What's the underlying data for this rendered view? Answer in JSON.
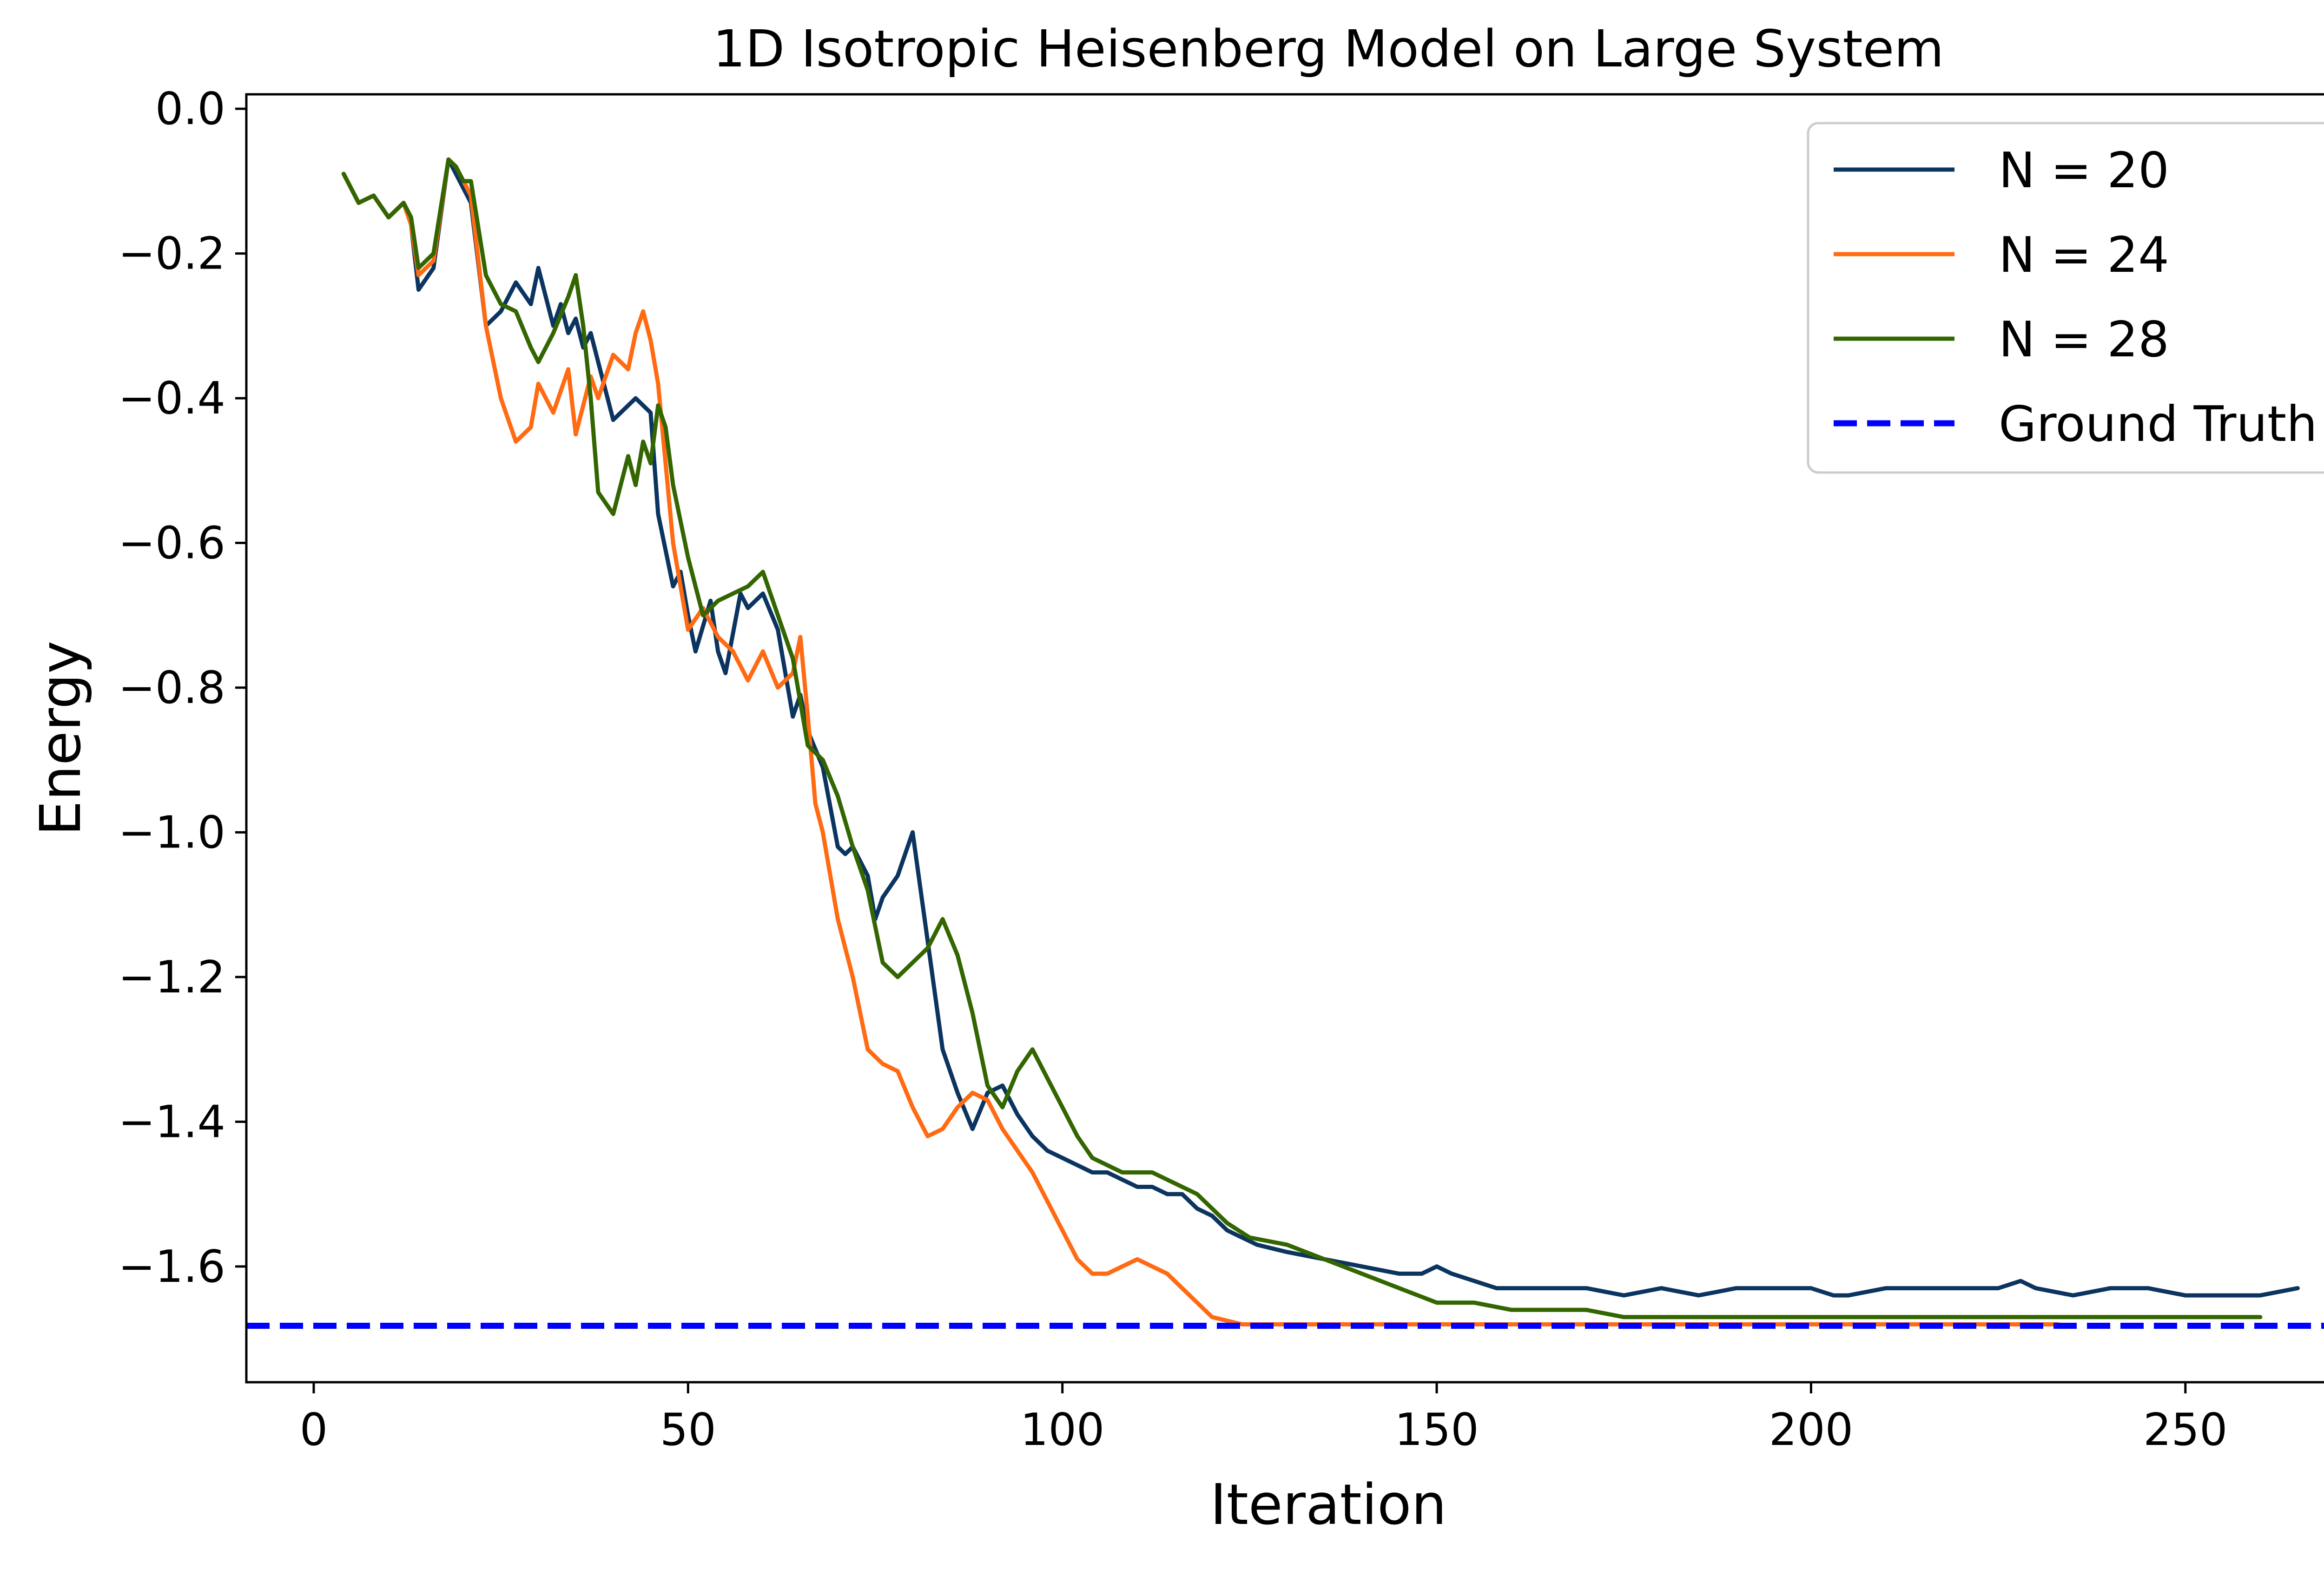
{
  "chart_data": {
    "type": "line",
    "title": "1D Isotropic Heisenberg Model on Large System",
    "xlabel": "Iteration",
    "ylabel": "Energy",
    "xlim": [
      -9,
      280
    ],
    "ylim": [
      -1.76,
      0.02
    ],
    "xticks": [
      0,
      50,
      100,
      150,
      200,
      250
    ],
    "xtick_labels": [
      "0",
      "50",
      "100",
      "150",
      "200",
      "250"
    ],
    "yticks": [
      0.0,
      -0.2,
      -0.4,
      -0.6,
      -0.8,
      -1.0,
      -1.2,
      -1.4,
      -1.6
    ],
    "ytick_labels": [
      "0.0",
      "−0.2",
      "−0.4",
      "−0.6",
      "−0.8",
      "−1.0",
      "−1.2",
      "−1.4",
      "−1.6"
    ],
    "grid": false,
    "legend_position": "top-right",
    "series": [
      {
        "name": "N = 20",
        "color": "#0b3560",
        "style": "solid",
        "x": [
          4,
          6,
          8,
          10,
          12,
          13,
          14,
          16,
          18,
          19,
          20,
          21,
          23,
          25,
          27,
          29,
          30,
          32,
          33,
          34,
          35,
          36,
          37,
          38,
          40,
          42,
          43,
          45,
          46,
          48,
          49,
          50,
          51,
          53,
          54,
          55,
          57,
          58,
          60,
          62,
          64,
          65,
          66,
          68,
          70,
          71,
          72,
          74,
          75,
          76,
          78,
          80,
          82,
          84,
          86,
          88,
          90,
          92,
          94,
          96,
          98,
          100,
          102,
          104,
          106,
          108,
          110,
          112,
          114,
          116,
          118,
          120,
          122,
          126,
          130,
          135,
          140,
          145,
          148,
          150,
          152,
          155,
          158,
          160,
          165,
          170,
          175,
          180,
          185,
          190,
          195,
          200,
          203,
          205,
          210,
          215,
          220,
          225,
          228,
          230,
          235,
          240,
          245,
          250,
          255,
          260,
          265
        ],
        "y": [
          -0.09,
          -0.13,
          -0.12,
          -0.15,
          -0.13,
          -0.16,
          -0.25,
          -0.22,
          -0.07,
          -0.09,
          -0.11,
          -0.13,
          -0.3,
          -0.28,
          -0.24,
          -0.27,
          -0.22,
          -0.3,
          -0.27,
          -0.31,
          -0.29,
          -0.33,
          -0.31,
          -0.35,
          -0.43,
          -0.41,
          -0.4,
          -0.42,
          -0.56,
          -0.66,
          -0.64,
          -0.7,
          -0.75,
          -0.68,
          -0.75,
          -0.78,
          -0.67,
          -0.69,
          -0.67,
          -0.72,
          -0.84,
          -0.81,
          -0.86,
          -0.91,
          -1.02,
          -1.03,
          -1.02,
          -1.06,
          -1.12,
          -1.09,
          -1.06,
          -1.0,
          -1.15,
          -1.3,
          -1.36,
          -1.41,
          -1.36,
          -1.35,
          -1.39,
          -1.42,
          -1.44,
          -1.45,
          -1.46,
          -1.47,
          -1.47,
          -1.48,
          -1.49,
          -1.49,
          -1.5,
          -1.5,
          -1.52,
          -1.53,
          -1.55,
          -1.57,
          -1.58,
          -1.59,
          -1.6,
          -1.61,
          -1.61,
          -1.6,
          -1.61,
          -1.62,
          -1.63,
          -1.63,
          -1.63,
          -1.63,
          -1.64,
          -1.63,
          -1.64,
          -1.63,
          -1.63,
          -1.63,
          -1.64,
          -1.64,
          -1.63,
          -1.63,
          -1.63,
          -1.63,
          -1.62,
          -1.63,
          -1.64,
          -1.63,
          -1.63,
          -1.64,
          -1.64,
          -1.64,
          -1.63
        ]
      },
      {
        "name": "N = 24",
        "color": "#ff6a13",
        "style": "solid",
        "x": [
          4,
          6,
          8,
          10,
          12,
          13,
          14,
          16,
          18,
          19,
          20,
          21,
          23,
          25,
          27,
          29,
          30,
          32,
          34,
          35,
          36,
          37,
          38,
          40,
          42,
          43,
          44,
          45,
          46,
          48,
          50,
          52,
          54,
          56,
          58,
          60,
          62,
          64,
          65,
          66,
          67,
          68,
          70,
          72,
          74,
          76,
          78,
          80,
          82,
          84,
          86,
          88,
          90,
          92,
          94,
          96,
          98,
          100,
          102,
          104,
          106,
          108,
          110,
          112,
          114,
          116,
          118,
          120,
          124,
          128,
          132,
          136,
          140,
          145,
          150,
          155,
          160,
          170,
          180,
          190,
          200,
          210,
          220,
          233
        ],
        "y": [
          -0.09,
          -0.13,
          -0.12,
          -0.15,
          -0.13,
          -0.16,
          -0.23,
          -0.21,
          -0.07,
          -0.08,
          -0.1,
          -0.12,
          -0.3,
          -0.4,
          -0.46,
          -0.44,
          -0.38,
          -0.42,
          -0.36,
          -0.45,
          -0.41,
          -0.37,
          -0.4,
          -0.34,
          -0.36,
          -0.31,
          -0.28,
          -0.32,
          -0.38,
          -0.6,
          -0.72,
          -0.69,
          -0.73,
          -0.75,
          -0.79,
          -0.75,
          -0.8,
          -0.78,
          -0.73,
          -0.84,
          -0.96,
          -1.0,
          -1.12,
          -1.2,
          -1.3,
          -1.32,
          -1.33,
          -1.38,
          -1.42,
          -1.41,
          -1.38,
          -1.36,
          -1.37,
          -1.41,
          -1.44,
          -1.47,
          -1.51,
          -1.55,
          -1.59,
          -1.61,
          -1.61,
          -1.6,
          -1.59,
          -1.6,
          -1.61,
          -1.63,
          -1.65,
          -1.67,
          -1.68,
          -1.68,
          -1.68,
          -1.68,
          -1.68,
          -1.68,
          -1.68,
          -1.68,
          -1.68,
          -1.68,
          -1.68,
          -1.68,
          -1.68,
          -1.68,
          -1.68,
          -1.68
        ]
      },
      {
        "name": "N = 28",
        "color": "#336600",
        "style": "solid",
        "x": [
          4,
          6,
          8,
          10,
          12,
          13,
          14,
          16,
          18,
          19,
          20,
          21,
          23,
          25,
          27,
          29,
          30,
          32,
          34,
          35,
          36,
          37,
          38,
          40,
          42,
          43,
          44,
          45,
          46,
          47,
          48,
          50,
          52,
          54,
          56,
          58,
          60,
          62,
          64,
          66,
          68,
          70,
          72,
          74,
          76,
          78,
          80,
          82,
          84,
          86,
          88,
          90,
          92,
          94,
          96,
          98,
          100,
          102,
          104,
          106,
          108,
          110,
          112,
          114,
          116,
          118,
          120,
          122,
          125,
          130,
          135,
          140,
          145,
          150,
          155,
          160,
          165,
          170,
          175,
          180,
          185,
          190,
          195,
          200,
          205,
          210,
          215,
          220,
          225,
          230,
          235,
          240,
          245,
          250,
          255,
          260
        ],
        "y": [
          -0.09,
          -0.13,
          -0.12,
          -0.15,
          -0.13,
          -0.15,
          -0.22,
          -0.2,
          -0.07,
          -0.08,
          -0.1,
          -0.1,
          -0.23,
          -0.27,
          -0.28,
          -0.33,
          -0.35,
          -0.31,
          -0.26,
          -0.23,
          -0.3,
          -0.4,
          -0.53,
          -0.56,
          -0.48,
          -0.52,
          -0.46,
          -0.49,
          -0.41,
          -0.44,
          -0.52,
          -0.62,
          -0.7,
          -0.68,
          -0.67,
          -0.66,
          -0.64,
          -0.7,
          -0.76,
          -0.88,
          -0.9,
          -0.95,
          -1.02,
          -1.08,
          -1.18,
          -1.2,
          -1.18,
          -1.16,
          -1.12,
          -1.17,
          -1.25,
          -1.35,
          -1.38,
          -1.33,
          -1.3,
          -1.34,
          -1.38,
          -1.42,
          -1.45,
          -1.46,
          -1.47,
          -1.47,
          -1.47,
          -1.48,
          -1.49,
          -1.5,
          -1.52,
          -1.54,
          -1.56,
          -1.57,
          -1.59,
          -1.61,
          -1.63,
          -1.65,
          -1.65,
          -1.66,
          -1.66,
          -1.66,
          -1.67,
          -1.67,
          -1.67,
          -1.67,
          -1.67,
          -1.67,
          -1.67,
          -1.67,
          -1.67,
          -1.67,
          -1.67,
          -1.67,
          -1.67,
          -1.67,
          -1.67,
          -1.67,
          -1.67,
          -1.67
        ]
      },
      {
        "name": "Ground Truth",
        "color": "#0000ff",
        "style": "dashed",
        "y": -1.682
      }
    ]
  }
}
